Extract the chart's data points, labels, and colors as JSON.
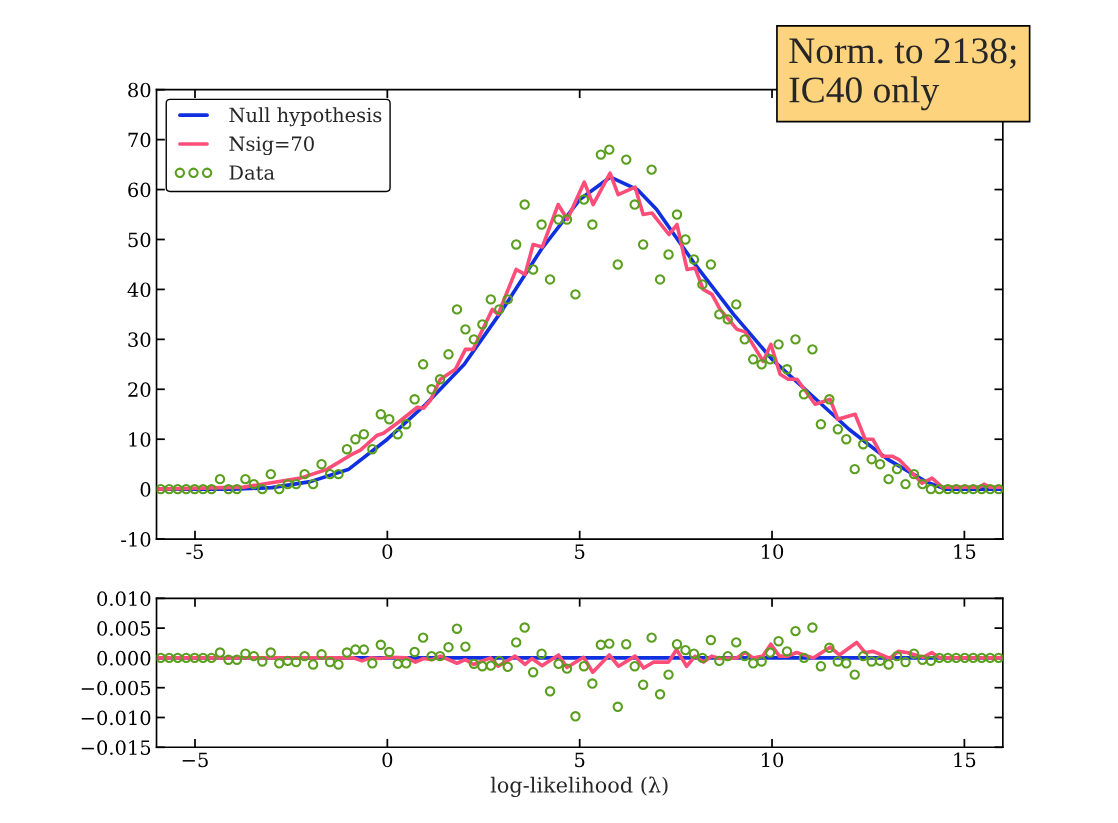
{
  "chart_data": [
    {
      "type": "line",
      "xlim": [
        -6,
        16
      ],
      "ylim": [
        -10,
        80
      ],
      "xticks": [
        {
          "value": -5,
          "label": "-5"
        },
        0,
        5,
        10,
        15
      ],
      "yticks": [
        {
          "value": -10,
          "label": "-10"
        },
        0,
        10,
        20,
        30,
        40,
        50,
        60,
        70,
        80
      ],
      "legend": "top left",
      "grid": false,
      "annotations": [
        "Norm. to 2138;\nIC40 only"
      ],
      "series": [
        {
          "name": "Null hypothesis",
          "color": "#1030e0",
          "x": [
            -6,
            -5,
            -4,
            -3,
            -2,
            -1,
            0,
            1,
            2,
            3,
            4,
            5,
            5.8,
            6.5,
            7,
            8,
            9,
            10,
            11,
            12,
            13,
            14,
            14.5,
            15,
            16
          ],
          "values": [
            0,
            0,
            0,
            0.3,
            1.5,
            4,
            10,
            17,
            25,
            36,
            48,
            58,
            62.5,
            60,
            56,
            45,
            35,
            26,
            19,
            12,
            6,
            1.5,
            0,
            0,
            0
          ]
        },
        {
          "name": "Nsig=70",
          "color": "#ff4d7a",
          "x": [
            -6,
            -3.74,
            -2.26,
            -1.56,
            -0.96,
            -0.7,
            -0.26,
            -0.1,
            0.29,
            0.78,
            0.94,
            1.12,
            1.38,
            1.77,
            2.03,
            2.23,
            2.73,
            2.88,
            3.35,
            3.58,
            3.79,
            4.03,
            4.44,
            4.68,
            5.12,
            5.35,
            5.79,
            6.0,
            6.44,
            6.65,
            6.88,
            7.32,
            7.53,
            7.79,
            8.0,
            8.21,
            8.44,
            8.65,
            9.09,
            9.3,
            9.77,
            9.97,
            10.21,
            10.42,
            10.65,
            11.12,
            11.51,
            11.71,
            12.16,
            12.42,
            12.62,
            12.86,
            13.12,
            13.32,
            13.9,
            14.16,
            14.42,
            15.4,
            15.51,
            15.66,
            16.0
          ],
          "values": [
            0,
            0.4,
            2.2,
            4,
            6.8,
            7.8,
            10.8,
            11.2,
            13.4,
            16.4,
            16.2,
            17.8,
            22,
            24,
            28,
            28,
            36,
            35,
            44,
            43,
            49,
            48.5,
            57,
            54,
            61.5,
            57,
            63.3,
            59,
            60.5,
            55,
            55.3,
            51,
            53,
            44,
            44.3,
            40,
            39,
            36,
            32,
            31.5,
            25.6,
            29,
            23,
            22,
            22,
            17,
            18,
            14,
            15,
            10,
            10,
            6.6,
            6.6,
            5.8,
            1.2,
            2.2,
            0.4,
            0.4,
            1,
            0.4,
            0.4
          ]
        },
        {
          "name": "Data",
          "type": "scatter",
          "marker": "circle",
          "color": "#5a9e1e",
          "x": [
            -5.89,
            -5.67,
            -5.45,
            -5.23,
            -5.01,
            -4.79,
            -4.57,
            -4.35,
            -4.13,
            -3.91,
            -3.69,
            -3.47,
            -3.25,
            -3.03,
            -2.81,
            -2.59,
            -2.37,
            -2.15,
            -1.93,
            -1.71,
            -1.49,
            -1.27,
            -1.05,
            -0.83,
            -0.61,
            -0.39,
            -0.17,
            0.05,
            0.27,
            0.49,
            0.71,
            0.93,
            1.15,
            1.37,
            1.59,
            1.81,
            2.03,
            2.25,
            2.47,
            2.69,
            2.91,
            3.13,
            3.35,
            3.57,
            3.79,
            4.01,
            4.23,
            4.45,
            4.67,
            4.89,
            5.11,
            5.33,
            5.55,
            5.77,
            5.99,
            6.21,
            6.43,
            6.65,
            6.87,
            7.09,
            7.31,
            7.53,
            7.75,
            7.97,
            8.19,
            8.41,
            8.63,
            8.85,
            9.07,
            9.29,
            9.51,
            9.73,
            9.95,
            10.17,
            10.39,
            10.61,
            10.83,
            11.05,
            11.27,
            11.49,
            11.71,
            11.93,
            12.15,
            12.37,
            12.59,
            12.81,
            13.03,
            13.25,
            13.47,
            13.69,
            13.91,
            14.13,
            14.35,
            14.57,
            14.79,
            15.01,
            15.23,
            15.45,
            15.67,
            15.89
          ],
          "values": [
            0,
            0,
            0,
            0,
            0,
            0,
            0,
            2,
            0,
            0,
            2,
            1,
            0,
            3,
            0,
            1,
            1,
            3,
            1,
            5,
            3,
            3,
            8,
            10,
            11,
            8,
            15,
            14,
            11,
            13,
            18,
            25,
            20,
            22,
            27,
            36,
            32,
            30,
            33,
            38,
            36,
            38,
            49,
            57,
            44,
            53,
            42,
            54,
            54,
            39,
            58,
            53,
            67,
            68,
            45,
            66,
            57,
            49,
            64,
            42,
            47,
            55,
            50,
            46,
            41,
            45,
            35,
            34,
            37,
            30,
            26,
            25,
            26,
            29,
            24,
            30,
            19,
            28,
            13,
            18,
            12,
            10,
            4,
            9,
            6,
            5,
            2,
            4,
            1,
            3,
            1,
            0,
            0,
            0,
            0,
            0,
            0,
            0,
            0,
            0
          ]
        }
      ]
    },
    {
      "type": "line",
      "xlim": [
        -6,
        16
      ],
      "ylim": [
        -0.015,
        0.01
      ],
      "xticks": [
        {
          "value": -5,
          "label": "−5"
        },
        0,
        5,
        10,
        15
      ],
      "yticks": [
        {
          "value": -0.015,
          "label": "−0.015"
        },
        {
          "value": -0.01,
          "label": "−0.010"
        },
        {
          "value": -0.005,
          "label": "−0.005"
        },
        {
          "value": 0,
          "label": "0.000"
        },
        {
          "value": 0.005,
          "label": "0.005"
        },
        {
          "value": 0.01,
          "label": "0.010"
        }
      ],
      "xlabel": "log-likelihood (λ)",
      "grid": false,
      "series": [
        {
          "color": "#1030e0",
          "x": [
            -6,
            16
          ],
          "values": [
            0,
            0
          ]
        },
        {
          "color": "#ff4d7a",
          "x": [
            -6,
            -0.88,
            -0.66,
            -0.44,
            -0.18,
            0.08,
            0.51,
            0.73,
            0.94,
            1.16,
            1.38,
            1.81,
            2.03,
            2.24,
            2.68,
            2.88,
            3.32,
            3.58,
            3.76,
            4.02,
            4.45,
            4.67,
            5.1,
            5.34,
            5.77,
            6.01,
            6.44,
            6.66,
            6.92,
            7.31,
            7.52,
            7.78,
            8.0,
            8.22,
            8.43,
            8.65,
            9.08,
            9.3,
            9.51,
            9.76,
            9.97,
            10.19,
            10.41,
            10.64,
            11.07,
            11.51,
            11.75,
            12.2,
            12.42,
            12.63,
            13.06,
            13.28,
            13.5,
            13.93,
            14.15,
            14.36,
            16
          ],
          "values": [
            0,
            0,
            -0.0005,
            0,
            -0.0001,
            0.0001,
            0,
            -0.0007,
            -0.0001,
            -0.0003,
            0.0003,
            -0.0009,
            -0.0003,
            -0.0011,
            0,
            -0.0014,
            0.0003,
            -0.0011,
            -0.0001,
            -0.0013,
            0.0005,
            -0.0016,
            0.0001,
            -0.0024,
            0.0005,
            -0.0014,
            0.0003,
            -0.0017,
            -0.0007,
            -0.0007,
            0.0014,
            -0.0014,
            0.0003,
            -0.0007,
            0.0003,
            -0.0001,
            0,
            0.0009,
            0,
            0.0003,
            0.0023,
            0.0003,
            0.0003,
            0.0009,
            0,
            0.0018,
            0.0005,
            0.0026,
            0.0009,
            0.0011,
            -0.0001,
            0.0011,
            0.0009,
            0.0001,
            0.0009,
            0,
            0
          ]
        },
        {
          "type": "scatter",
          "marker": "circle",
          "color": "#5a9e1e",
          "x": [
            -5.89,
            -5.67,
            -5.45,
            -5.23,
            -5.01,
            -4.79,
            -4.57,
            -4.35,
            -4.13,
            -3.91,
            -3.69,
            -3.47,
            -3.25,
            -3.03,
            -2.81,
            -2.59,
            -2.37,
            -2.15,
            -1.93,
            -1.71,
            -1.49,
            -1.27,
            -1.05,
            -0.83,
            -0.61,
            -0.39,
            -0.17,
            0.05,
            0.27,
            0.49,
            0.71,
            0.93,
            1.15,
            1.37,
            1.59,
            1.81,
            2.03,
            2.25,
            2.47,
            2.69,
            2.91,
            3.13,
            3.35,
            3.57,
            3.79,
            4.01,
            4.23,
            4.45,
            4.67,
            4.89,
            5.11,
            5.33,
            5.55,
            5.77,
            5.99,
            6.21,
            6.43,
            6.65,
            6.87,
            7.09,
            7.31,
            7.53,
            7.75,
            7.97,
            8.19,
            8.41,
            8.63,
            8.85,
            9.07,
            9.29,
            9.51,
            9.73,
            9.95,
            10.17,
            10.39,
            10.61,
            10.83,
            11.05,
            11.27,
            11.49,
            11.71,
            11.93,
            12.15,
            12.37,
            12.59,
            12.81,
            13.03,
            13.25,
            13.47,
            13.69,
            13.91,
            14.13,
            14.35,
            14.57,
            14.79,
            15.01,
            15.23,
            15.45,
            15.67,
            15.89
          ],
          "values": [
            0,
            0,
            0,
            0,
            0,
            0,
            0,
            0.0009,
            -0.0003,
            -0.0003,
            0.0007,
            0.0003,
            -0.0006,
            0.0009,
            -0.0009,
            -0.0005,
            -0.0007,
            0.0003,
            -0.0011,
            0.0006,
            -0.0007,
            -0.0011,
            0.0009,
            0.0014,
            0.0014,
            -0.0009,
            0.0022,
            0.001,
            -0.001,
            -0.0009,
            0.001,
            0.0034,
            0.0003,
            0.0003,
            0.0018,
            0.0049,
            0.0019,
            -0.001,
            -0.0014,
            -0.0013,
            -0.0005,
            -0.0015,
            0.0026,
            0.0051,
            -0.0024,
            0.0007,
            -0.0056,
            -0.001,
            -0.0018,
            -0.0098,
            -0.0014,
            -0.0043,
            0.0022,
            0.0024,
            -0.0082,
            0.0023,
            -0.0014,
            -0.0045,
            0.0034,
            -0.0061,
            -0.0028,
            0.0023,
            0.0013,
            0.0007,
            0,
            0.003,
            -0.0005,
            0.0003,
            0.0026,
            0.0003,
            -0.0009,
            -0.0006,
            0.0009,
            0.0028,
            0.0011,
            0.0045,
            0,
            0.0051,
            -0.0014,
            0.0017,
            -0.0006,
            -0.0009,
            -0.0028,
            0.0003,
            -0.0006,
            -0.0005,
            -0.0011,
            0.0003,
            -0.0007,
            0.0007,
            -0.0003,
            -0.0005,
            0,
            0,
            0,
            0,
            0,
            0,
            0,
            0
          ]
        }
      ]
    }
  ]
}
